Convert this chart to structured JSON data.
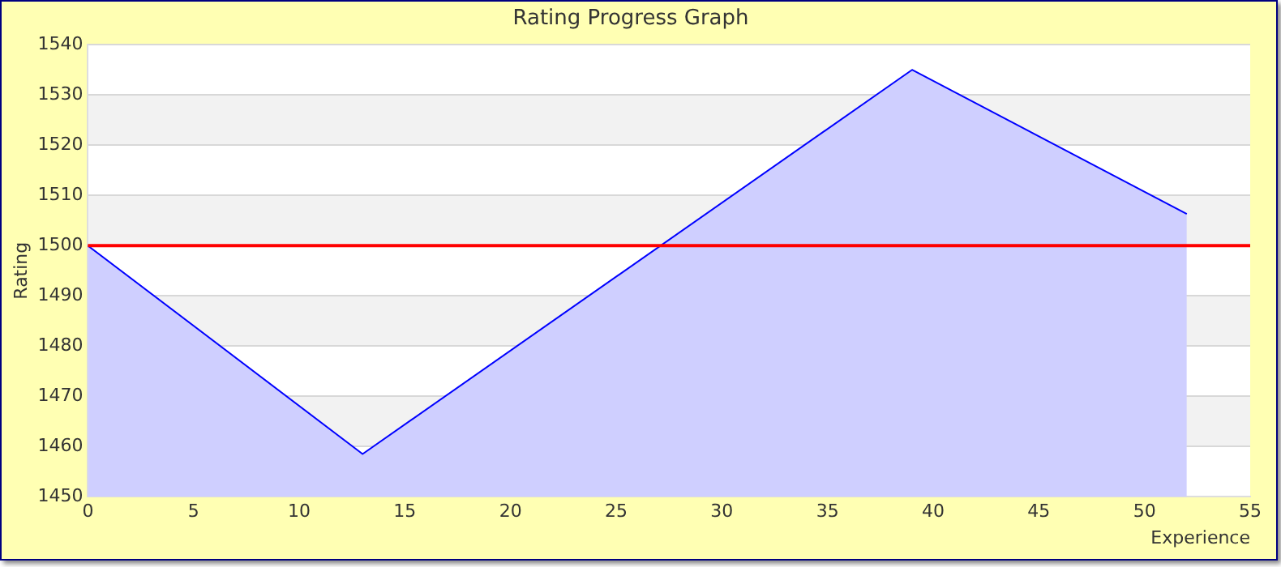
{
  "chart_data": {
    "type": "area",
    "title": "Rating Progress Graph",
    "xlabel": "Experience",
    "ylabel": "Rating",
    "x": [
      0,
      13,
      39,
      52
    ],
    "series": [
      {
        "color": "#0000ff",
        "values": [
          1500,
          1458.5,
          1535,
          1506.3
        ]
      }
    ],
    "xlim": [
      0,
      55
    ],
    "xticks": [
      0,
      5,
      10,
      15,
      20,
      25,
      30,
      35,
      40,
      45,
      50,
      55
    ],
    "ylim": [
      1450,
      1540
    ],
    "yticks": [
      1450,
      1460,
      1470,
      1480,
      1490,
      1500,
      1510,
      1520,
      1530,
      1540
    ],
    "grid": "y",
    "legend": false,
    "marker": "none",
    "line_style": "solid",
    "ref_lines": [
      {
        "axis": "y",
        "value": 1500,
        "color": "#ff0000"
      }
    ]
  }
}
